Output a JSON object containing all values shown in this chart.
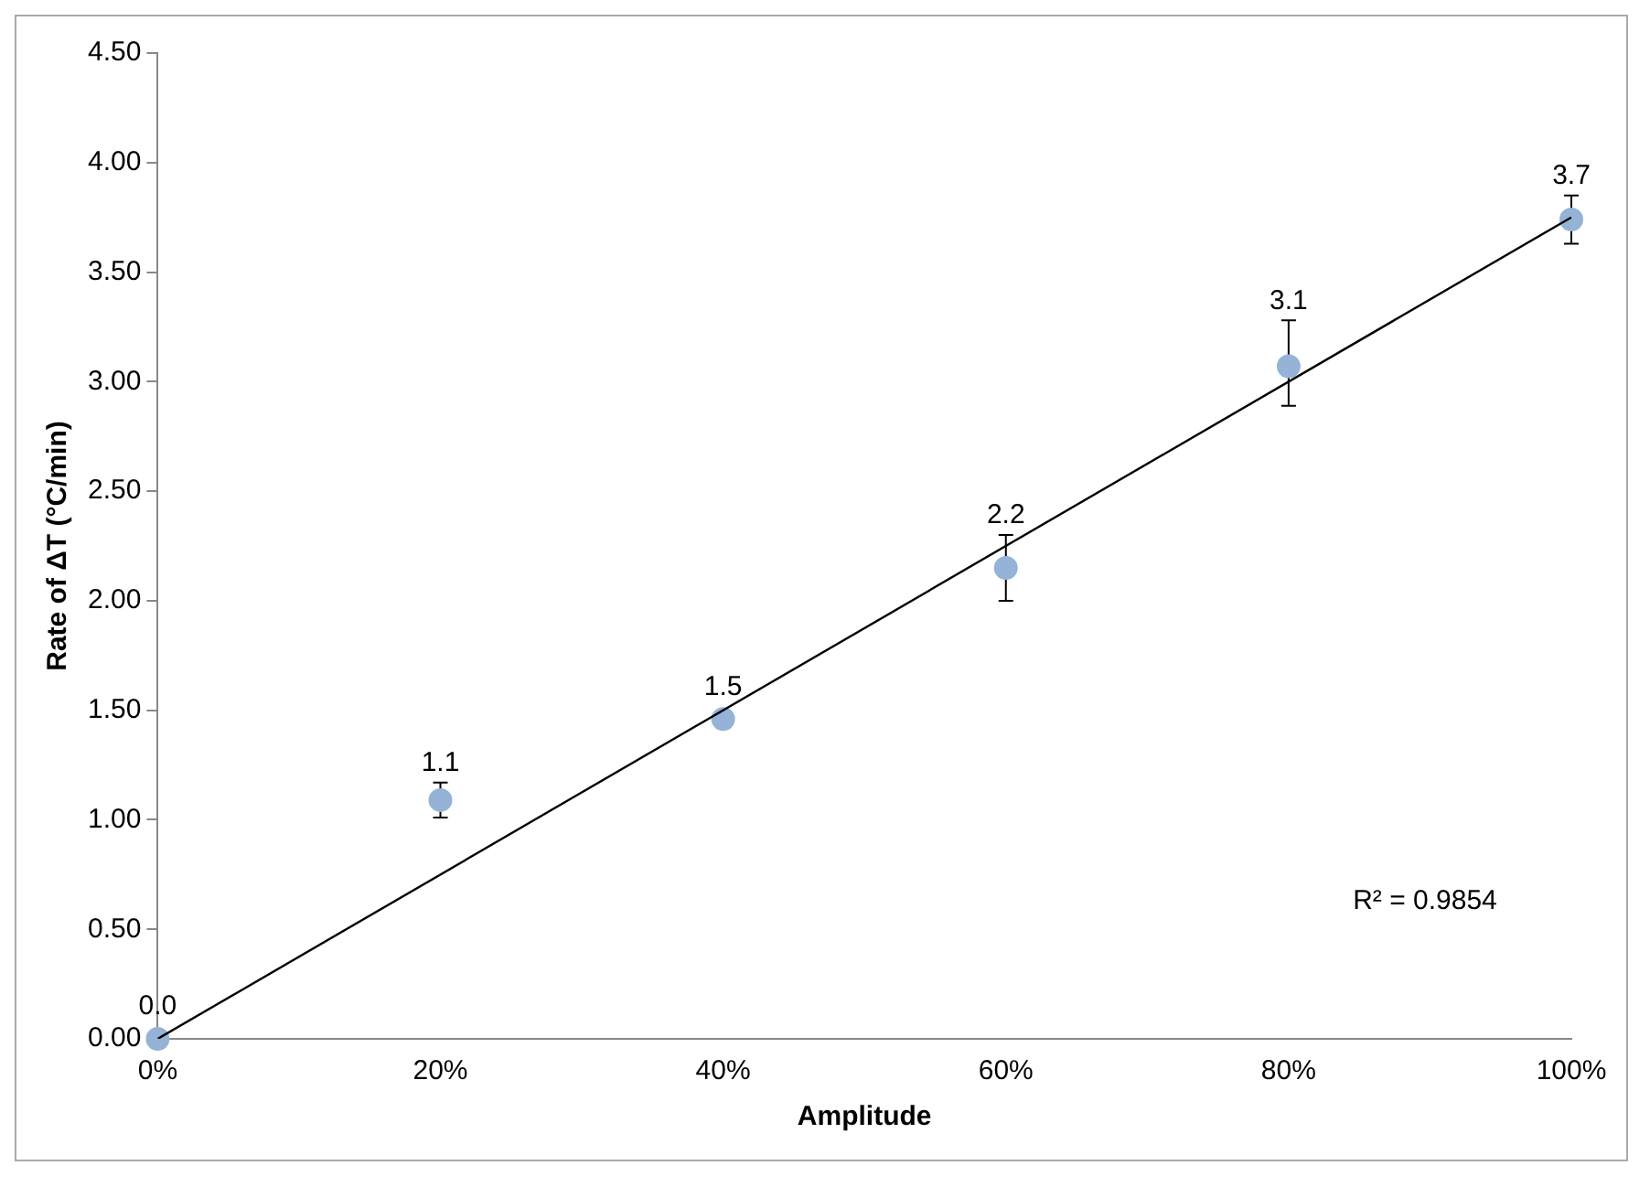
{
  "chart_data": {
    "type": "scatter",
    "xlabel": "Amplitude",
    "ylabel": "Rate of ΔT (°C/min)",
    "x": [
      0,
      20,
      40,
      60,
      80,
      100
    ],
    "series": [
      {
        "color": "#95b3d7",
        "values": [
          0.0,
          1.09,
          1.46,
          2.15,
          3.07,
          3.74
        ],
        "errors": [
          null,
          [
            1.01,
            1.17
          ],
          null,
          [
            2.0,
            2.3
          ],
          [
            2.89,
            3.28
          ],
          [
            3.63,
            3.85
          ]
        ],
        "value_labels": [
          "0.0",
          "1.1",
          "1.5",
          "2.2",
          "3.1",
          "3.7"
        ]
      },
      {
        "type": "line",
        "marker": "none",
        "color": "#000000",
        "x": [
          0,
          100
        ],
        "values": [
          0.0,
          3.75
        ]
      }
    ],
    "marker": "circle",
    "grid": false,
    "legend": false,
    "annotations": [
      "R² = 0.9854"
    ],
    "xlim": [
      0,
      100
    ],
    "xticks": [
      {
        "value": 0,
        "label": "0%"
      },
      {
        "value": 20,
        "label": "20%"
      },
      {
        "value": 40,
        "label": "40%"
      },
      {
        "value": 60,
        "label": "60%"
      },
      {
        "value": 80,
        "label": "80%"
      },
      {
        "value": 100,
        "label": "100%"
      }
    ],
    "ylim": [
      0,
      4.5
    ],
    "yticks": [
      {
        "value": 0,
        "label": "0.00"
      },
      {
        "value": 0.5,
        "label": "0.50"
      },
      {
        "value": 1,
        "label": "1.00"
      },
      {
        "value": 1.5,
        "label": "1.50"
      },
      {
        "value": 2,
        "label": "2.00"
      },
      {
        "value": 2.5,
        "label": "2.50"
      },
      {
        "value": 3,
        "label": "3.00"
      },
      {
        "value": 3.5,
        "label": "3.50"
      },
      {
        "value": 4,
        "label": "4.00"
      },
      {
        "value": 4.5,
        "label": "4.50"
      }
    ]
  }
}
